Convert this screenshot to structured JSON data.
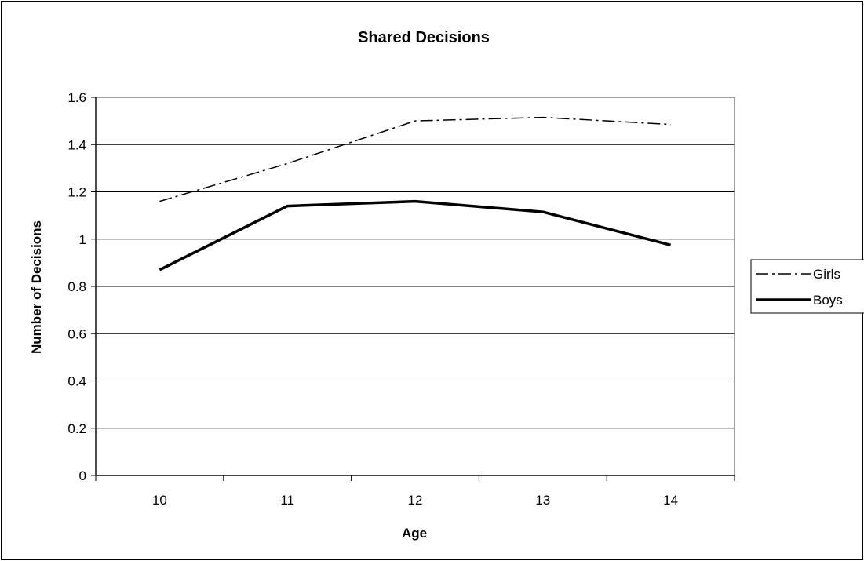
{
  "chart_data": {
    "type": "line",
    "title": "Shared Decisions",
    "xlabel": "Age",
    "ylabel": "Number of Decisions",
    "categories": [
      "10",
      "11",
      "12",
      "13",
      "14"
    ],
    "series": [
      {
        "name": "Girls",
        "values": [
          1.16,
          1.32,
          1.5,
          1.515,
          1.485
        ],
        "line_style": "dash-dot",
        "color": "#000000"
      },
      {
        "name": "Boys",
        "values": [
          0.87,
          1.14,
          1.16,
          1.115,
          0.975
        ],
        "line_style": "solid-thick",
        "color": "#000000"
      }
    ],
    "ylim": [
      0,
      1.6
    ],
    "yticks": [
      "0",
      "0.2",
      "0.4",
      "0.6",
      "0.8",
      "1",
      "1.2",
      "1.4",
      "1.6"
    ],
    "grid": "horizontal",
    "legend": "right"
  }
}
